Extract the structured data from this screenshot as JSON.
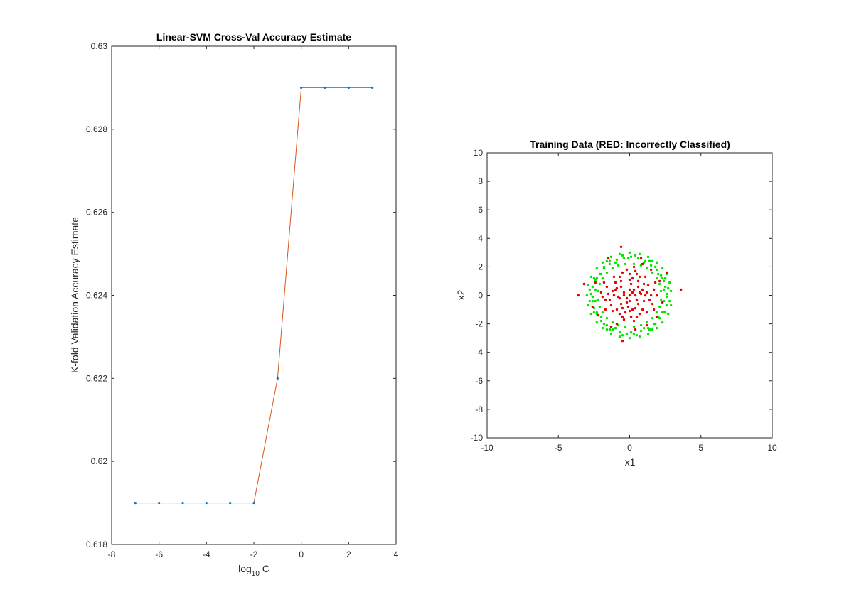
{
  "chart_data": [
    {
      "type": "line",
      "title": "Linear-SVM Cross-Val Accuracy Estimate",
      "xlabel_base": "log",
      "xlabel_sub": "10",
      "xlabel_rest": " C",
      "ylabel": "K-fold Validation Accuracy Estimate",
      "xlim": [
        -8,
        4
      ],
      "ylim": [
        0.618,
        0.63
      ],
      "xticks": [
        -8,
        -6,
        -4,
        -2,
        0,
        2,
        4
      ],
      "yticks": [
        0.618,
        0.62,
        0.622,
        0.624,
        0.626,
        0.628,
        0.63
      ],
      "xtick_labels": [
        "-8",
        "-6",
        "-4",
        "-2",
        "0",
        "2",
        "4"
      ],
      "ytick_labels": [
        "0.618",
        "0.62",
        "0.622",
        "0.624",
        "0.626",
        "0.628",
        "0.63"
      ],
      "grid": false,
      "line_color": "#d95319",
      "marker_color": "#0072bd",
      "x": [
        -7,
        -6,
        -5,
        -4,
        -3,
        -2,
        -1,
        0,
        1,
        2,
        3
      ],
      "y": [
        0.619,
        0.619,
        0.619,
        0.619,
        0.619,
        0.619,
        0.622,
        0.629,
        0.629,
        0.629,
        0.629
      ]
    },
    {
      "type": "scatter",
      "title": "Training Data (RED: Incorrectly Classified)",
      "xlabel": "x1",
      "ylabel": "x2",
      "xlim": [
        -10,
        10
      ],
      "ylim": [
        -10,
        10
      ],
      "xticks": [
        -10,
        -5,
        0,
        5,
        10
      ],
      "yticks": [
        -10,
        -8,
        -6,
        -4,
        -2,
        0,
        2,
        4,
        6,
        8,
        10
      ],
      "xtick_labels": [
        "-10",
        "-5",
        "0",
        "5",
        "10"
      ],
      "ytick_labels": [
        "-10",
        "-8",
        "-6",
        "-4",
        "-2",
        "0",
        "2",
        "4",
        "6",
        "8",
        "10"
      ],
      "grid": false,
      "series": [
        {
          "color": "#00e600",
          "description": "correctly classified (outer ring, radius ~2 to 3)",
          "points": [
            [
              2.6,
              0.1
            ],
            [
              2.5,
              0.6
            ],
            [
              2.4,
              1.0
            ],
            [
              2.2,
              1.4
            ],
            [
              1.9,
              1.8
            ],
            [
              1.5,
              2.1
            ],
            [
              1.1,
              2.4
            ],
            [
              0.6,
              2.6
            ],
            [
              0.1,
              2.7
            ],
            [
              -0.4,
              2.6
            ],
            [
              -0.9,
              2.5
            ],
            [
              -1.4,
              2.2
            ],
            [
              -1.8,
              1.9
            ],
            [
              -2.1,
              1.5
            ],
            [
              -2.4,
              1.1
            ],
            [
              -2.6,
              0.6
            ],
            [
              -2.7,
              0.1
            ],
            [
              -2.6,
              -0.4
            ],
            [
              -2.5,
              -0.9
            ],
            [
              -2.3,
              -1.3
            ],
            [
              -2.0,
              -1.8
            ],
            [
              -1.6,
              -2.1
            ],
            [
              -1.2,
              -2.4
            ],
            [
              -0.7,
              -2.6
            ],
            [
              -0.2,
              -2.7
            ],
            [
              0.3,
              -2.7
            ],
            [
              0.8,
              -2.5
            ],
            [
              1.3,
              -2.3
            ],
            [
              1.7,
              -2.0
            ],
            [
              2.1,
              -1.6
            ],
            [
              2.4,
              -1.2
            ],
            [
              2.6,
              -0.7
            ],
            [
              2.9,
              0.3
            ],
            [
              2.8,
              0.9
            ],
            [
              2.6,
              1.5
            ],
            [
              2.3,
              1.9
            ],
            [
              1.9,
              2.3
            ],
            [
              1.3,
              2.7
            ],
            [
              0.7,
              2.9
            ],
            [
              0.0,
              3.0
            ],
            [
              -0.7,
              2.9
            ],
            [
              -1.3,
              2.7
            ],
            [
              -1.9,
              2.3
            ],
            [
              -2.3,
              1.9
            ],
            [
              -2.7,
              1.3
            ],
            [
              -2.9,
              0.7
            ],
            [
              -3.0,
              0.0
            ],
            [
              -2.9,
              -0.7
            ],
            [
              -2.7,
              -1.3
            ],
            [
              -2.3,
              -1.9
            ],
            [
              -1.9,
              -2.3
            ],
            [
              -1.3,
              -2.7
            ],
            [
              -0.7,
              -2.9
            ],
            [
              0.0,
              -3.0
            ],
            [
              0.7,
              -2.9
            ],
            [
              1.3,
              -2.7
            ],
            [
              1.9,
              -2.3
            ],
            [
              2.3,
              -1.9
            ],
            [
              2.7,
              -1.3
            ],
            [
              2.9,
              -0.7
            ],
            [
              2.2,
              0.3
            ],
            [
              2.1,
              0.8
            ],
            [
              1.9,
              1.2
            ],
            [
              1.6,
              1.6
            ],
            [
              1.2,
              1.9
            ],
            [
              0.8,
              2.1
            ],
            [
              0.3,
              2.2
            ],
            [
              -0.3,
              2.2
            ],
            [
              -0.8,
              2.1
            ],
            [
              -1.2,
              1.9
            ],
            [
              -1.6,
              1.6
            ],
            [
              -1.9,
              1.2
            ],
            [
              -2.1,
              0.8
            ],
            [
              -2.2,
              0.3
            ],
            [
              -2.2,
              -0.3
            ],
            [
              -2.1,
              -0.8
            ],
            [
              -1.9,
              -1.2
            ],
            [
              -1.6,
              -1.6
            ],
            [
              -1.2,
              -1.9
            ],
            [
              -0.8,
              -2.1
            ],
            [
              -0.3,
              -2.2
            ],
            [
              0.3,
              -2.2
            ],
            [
              0.8,
              -2.1
            ],
            [
              1.2,
              -1.9
            ],
            [
              1.6,
              -1.6
            ],
            [
              1.9,
              -1.2
            ],
            [
              2.1,
              -0.8
            ],
            [
              2.2,
              -0.3
            ],
            [
              2.4,
              0.4
            ],
            [
              2.0,
              1.5
            ],
            [
              1.0,
              2.3
            ],
            [
              -1.0,
              2.3
            ],
            [
              -2.0,
              1.5
            ],
            [
              -2.4,
              0.4
            ],
            [
              -2.4,
              -0.4
            ],
            [
              -2.0,
              -1.5
            ],
            [
              -1.0,
              -2.3
            ],
            [
              1.0,
              -2.3
            ],
            [
              2.0,
              -1.5
            ],
            [
              2.4,
              -0.4
            ],
            [
              2.7,
              0.5
            ],
            [
              2.5,
              1.2
            ],
            [
              1.6,
              2.4
            ],
            [
              0.4,
              2.8
            ],
            [
              -0.5,
              2.8
            ],
            [
              -1.6,
              2.4
            ],
            [
              -2.5,
              1.2
            ],
            [
              -2.8,
              0.4
            ],
            [
              -2.8,
              -0.4
            ],
            [
              -2.5,
              -1.2
            ],
            [
              -1.6,
              -2.4
            ],
            [
              -0.5,
              -2.8
            ],
            [
              0.5,
              -2.8
            ],
            [
              1.6,
              -2.4
            ],
            [
              2.5,
              -1.2
            ],
            [
              2.8,
              -0.4
            ],
            [
              2.3,
              1.2
            ],
            [
              1.4,
              2.4
            ],
            [
              -1.4,
              2.4
            ],
            [
              -2.3,
              1.2
            ],
            [
              -2.3,
              -1.2
            ],
            [
              -1.4,
              -2.4
            ],
            [
              1.4,
              -2.4
            ],
            [
              2.3,
              -1.2
            ],
            [
              2.6,
              -0.1
            ],
            [
              -2.6,
              -0.1
            ],
            [
              0.1,
              -2.6
            ],
            [
              -0.1,
              2.6
            ],
            [
              1.8,
              2.0
            ],
            [
              -1.8,
              2.0
            ],
            [
              -1.8,
              -2.0
            ],
            [
              1.8,
              -2.0
            ]
          ]
        },
        {
          "color": "#e60000",
          "description": "incorrectly classified (inner disc and stray points)",
          "points": [
            [
              0.0,
              0.0
            ],
            [
              0.3,
              0.4
            ],
            [
              -0.4,
              0.2
            ],
            [
              0.5,
              -0.3
            ],
            [
              -0.2,
              -0.5
            ],
            [
              0.8,
              0.1
            ],
            [
              -0.8,
              -0.1
            ],
            [
              0.1,
              0.8
            ],
            [
              -0.1,
              -0.8
            ],
            [
              0.6,
              0.6
            ],
            [
              -0.6,
              0.6
            ],
            [
              0.6,
              -0.6
            ],
            [
              -0.6,
              -0.6
            ],
            [
              1.2,
              0.2
            ],
            [
              -1.2,
              0.3
            ],
            [
              0.2,
              1.2
            ],
            [
              -0.3,
              -1.2
            ],
            [
              1.0,
              0.8
            ],
            [
              -1.0,
              0.9
            ],
            [
              0.9,
              -1.0
            ],
            [
              -0.9,
              -1.0
            ],
            [
              1.5,
              0.0
            ],
            [
              -1.5,
              0.1
            ],
            [
              0.0,
              1.5
            ],
            [
              0.1,
              -1.5
            ],
            [
              1.3,
              0.7
            ],
            [
              -1.3,
              -0.7
            ],
            [
              0.7,
              1.3
            ],
            [
              -0.7,
              1.3
            ],
            [
              0.7,
              -1.3
            ],
            [
              -0.7,
              -1.3
            ],
            [
              1.7,
              0.4
            ],
            [
              -1.7,
              -0.3
            ],
            [
              0.4,
              1.7
            ],
            [
              -0.4,
              -1.7
            ],
            [
              1.1,
              1.3
            ],
            [
              -1.1,
              1.3
            ],
            [
              1.2,
              -1.2
            ],
            [
              -1.2,
              -1.1
            ],
            [
              0.4,
              0.0
            ],
            [
              -0.4,
              0.0
            ],
            [
              0.0,
              0.4
            ],
            [
              0.0,
              -0.4
            ],
            [
              0.9,
              0.4
            ],
            [
              -0.9,
              0.5
            ],
            [
              0.4,
              -0.9
            ],
            [
              -0.5,
              -0.9
            ],
            [
              1.6,
              -0.6
            ],
            [
              -1.6,
              0.6
            ],
            [
              0.3,
              -1.8
            ],
            [
              -0.2,
              1.8
            ],
            [
              1.9,
              0.0
            ],
            [
              -1.9,
              -0.1
            ],
            [
              0.6,
              1.0
            ],
            [
              -0.6,
              1.0
            ],
            [
              0.2,
              -1.0
            ],
            [
              1.4,
              -0.3
            ],
            [
              -1.4,
              -0.3
            ],
            [
              0.2,
              0.2
            ],
            [
              -0.2,
              -0.2
            ],
            [
              0.7,
              0.2
            ],
            [
              -0.7,
              -0.2
            ],
            [
              1.0,
              -0.4
            ],
            [
              -1.0,
              0.4
            ],
            [
              0.5,
              1.5
            ],
            [
              -0.5,
              1.6
            ],
            [
              0.5,
              -1.5
            ],
            [
              -0.5,
              -1.5
            ],
            [
              1.8,
              0.9
            ],
            [
              -1.8,
              0.9
            ],
            [
              1.7,
              -1.0
            ],
            [
              -1.7,
              -1.0
            ],
            [
              1.1,
              0.0
            ],
            [
              -1.1,
              0.0
            ],
            [
              0.0,
              1.1
            ],
            [
              0.0,
              -1.1
            ],
            [
              -3.6,
              0.0
            ],
            [
              3.6,
              0.4
            ],
            [
              -0.6,
              3.4
            ],
            [
              -0.5,
              -3.2
            ],
            [
              0.9,
              2.2
            ],
            [
              -1.5,
              2.6
            ],
            [
              2.3,
              -0.5
            ],
            [
              -2.2,
              -1.4
            ],
            [
              1.5,
              1.8
            ],
            [
              -2.0,
              0.2
            ],
            [
              0.3,
              2.0
            ],
            [
              1.9,
              -1.5
            ],
            [
              -0.9,
              -2.0
            ],
            [
              2.1,
              1.0
            ],
            [
              -2.4,
              0.9
            ],
            [
              0.8,
              2.6
            ],
            [
              1.2,
              -2.1
            ],
            [
              -1.3,
              -2.2
            ],
            [
              -2.6,
              -0.8
            ],
            [
              2.6,
              1.6
            ],
            [
              -3.2,
              0.8
            ],
            [
              0.4,
              -2.4
            ]
          ]
        }
      ]
    }
  ]
}
